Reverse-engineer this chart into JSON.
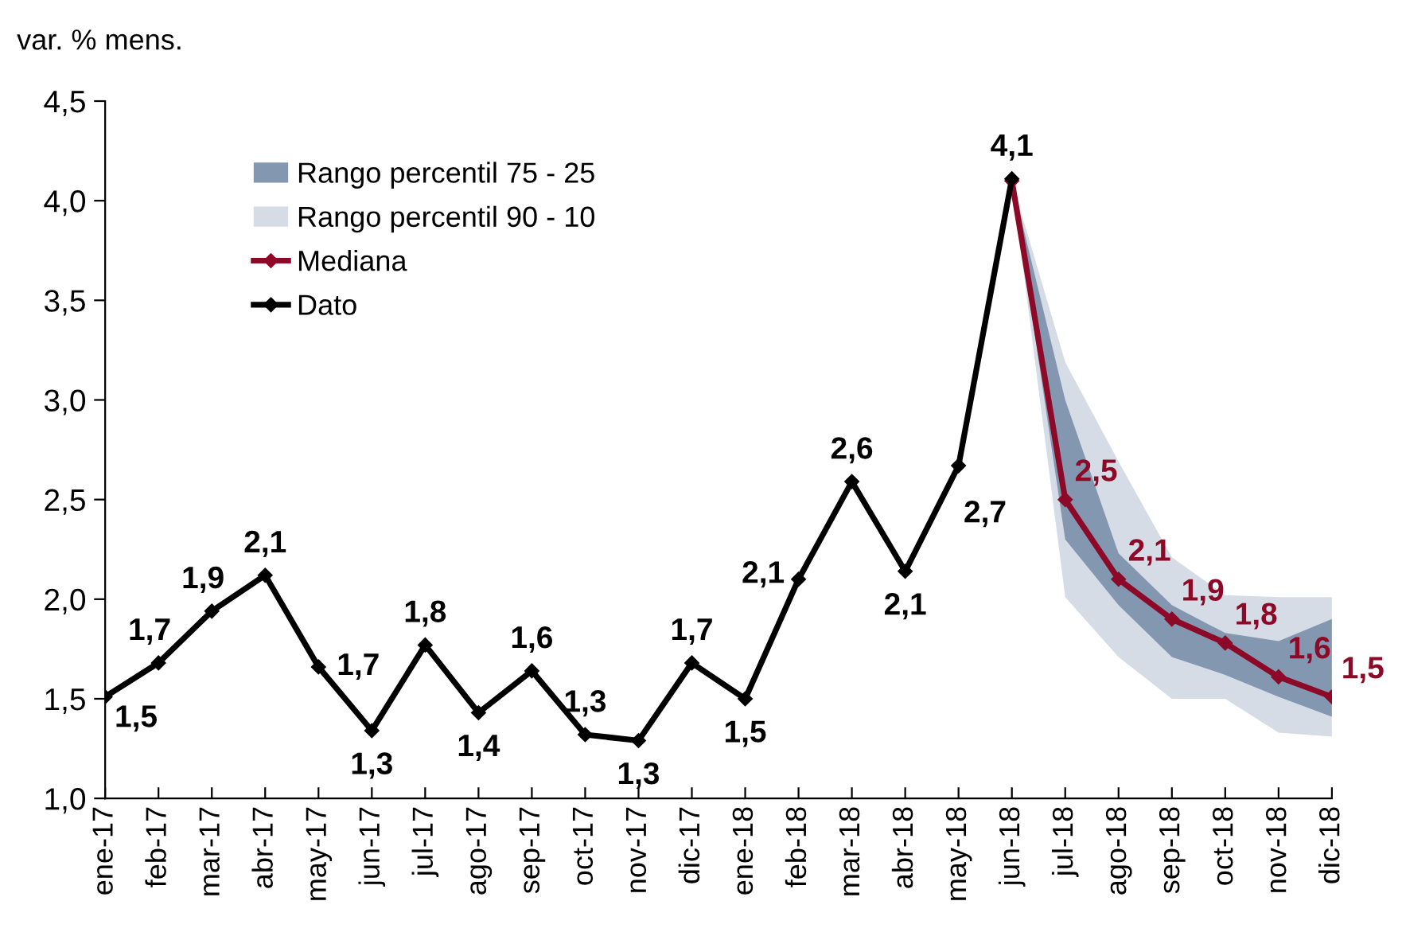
{
  "chart_data": {
    "type": "line",
    "ylabel": "var. % mens.",
    "categories": [
      "ene-17",
      "feb-17",
      "mar-17",
      "abr-17",
      "may-17",
      "jun-17",
      "jul-17",
      "ago-17",
      "sep-17",
      "oct-17",
      "nov-17",
      "dic-17",
      "ene-18",
      "feb-18",
      "mar-18",
      "abr-18",
      "may-18",
      "jun-18",
      "jul-18",
      "ago-18",
      "sep-18",
      "oct-18",
      "nov-18",
      "dic-18"
    ],
    "ylim": [
      1.0,
      4.5
    ],
    "yticks": [
      {
        "value": 1.0,
        "label": "1,0"
      },
      {
        "value": 1.5,
        "label": "1,5"
      },
      {
        "value": 2.0,
        "label": "2,0"
      },
      {
        "value": 2.5,
        "label": "2,5"
      },
      {
        "value": 3.0,
        "label": "3,0"
      },
      {
        "value": 3.5,
        "label": "3,5"
      },
      {
        "value": 4.0,
        "label": "4,0"
      },
      {
        "value": 4.5,
        "label": "4,5"
      }
    ],
    "grid": false,
    "legend": "top left",
    "series": [
      {
        "type": "area",
        "name": "Rango percentil 90 - 10",
        "color": "#d6dce5",
        "lower": [
          null,
          null,
          null,
          null,
          null,
          null,
          null,
          null,
          null,
          null,
          null,
          null,
          null,
          null,
          null,
          null,
          null,
          4.1,
          2.01,
          1.71,
          1.5,
          1.5,
          1.33,
          1.31
        ],
        "upper": [
          null,
          null,
          null,
          null,
          null,
          null,
          null,
          null,
          null,
          null,
          null,
          null,
          null,
          null,
          null,
          null,
          null,
          4.1,
          3.19,
          2.69,
          2.21,
          2.02,
          2.01,
          2.01
        ],
        "values": [
          null,
          null,
          null,
          null,
          null,
          null,
          null,
          null,
          null,
          null,
          null,
          null,
          null,
          null,
          null,
          null,
          null,
          null,
          null,
          null,
          null,
          null,
          null,
          null
        ]
      },
      {
        "type": "area",
        "name": "Rango percentil 75 - 25",
        "color": "#8497b0",
        "lower": [
          null,
          null,
          null,
          null,
          null,
          null,
          null,
          null,
          null,
          null,
          null,
          null,
          null,
          null,
          null,
          null,
          null,
          4.1,
          2.3,
          1.97,
          1.71,
          1.62,
          1.51,
          1.41
        ],
        "upper": [
          null,
          null,
          null,
          null,
          null,
          null,
          null,
          null,
          null,
          null,
          null,
          null,
          null,
          null,
          null,
          null,
          null,
          4.1,
          3.0,
          2.23,
          1.97,
          1.83,
          1.79,
          1.9
        ],
        "values": [
          null,
          null,
          null,
          null,
          null,
          null,
          null,
          null,
          null,
          null,
          null,
          null,
          null,
          null,
          null,
          null,
          null,
          null,
          null,
          null,
          null,
          null,
          null,
          null
        ]
      },
      {
        "name": "Mediana",
        "color": "#8c0a28",
        "marker": "diamond",
        "values": [
          null,
          null,
          null,
          null,
          null,
          null,
          null,
          null,
          null,
          null,
          null,
          null,
          null,
          null,
          null,
          null,
          null,
          4.1,
          2.5,
          2.1,
          1.9,
          1.78,
          1.61,
          1.51
        ],
        "value_labels": [
          null,
          null,
          null,
          null,
          null,
          null,
          null,
          null,
          null,
          null,
          null,
          null,
          null,
          null,
          null,
          null,
          null,
          null,
          "2,5",
          "2,1",
          "1,9",
          "1,8",
          "1,6",
          "1,5"
        ]
      },
      {
        "name": "Dato",
        "color": "#000000",
        "marker": "diamond",
        "values": [
          1.51,
          1.68,
          1.94,
          2.12,
          1.66,
          1.34,
          1.77,
          1.43,
          1.64,
          1.32,
          1.29,
          1.68,
          1.5,
          2.1,
          2.59,
          2.14,
          2.67,
          4.11,
          null,
          null,
          null,
          null,
          null,
          null
        ],
        "value_labels": [
          "1,5",
          "1,7",
          "1,9",
          "2,1",
          "1,7",
          "1,3",
          "1,8",
          "1,4",
          "1,6",
          "1,3",
          "1,3",
          "1,7",
          "1,5",
          "2,1",
          "2,6",
          "2,1",
          "2,7",
          "4,1",
          null,
          null,
          null,
          null,
          null,
          null
        ]
      }
    ]
  }
}
